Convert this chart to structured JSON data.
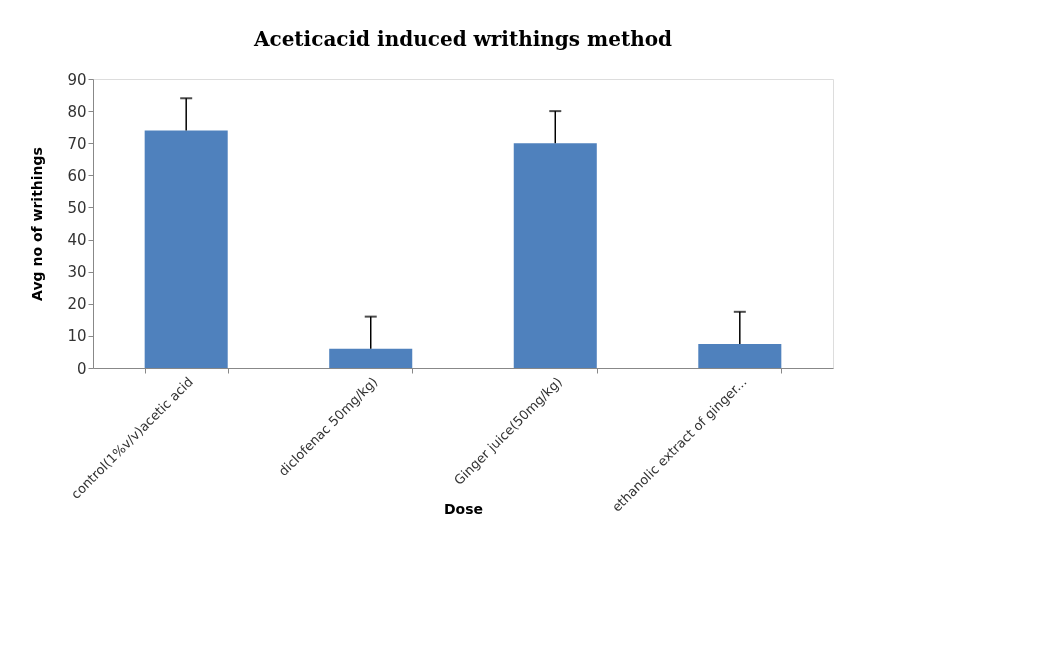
{
  "chart_data": {
    "type": "bar",
    "title": "Aceticacid induced writhings method",
    "xlabel": "Dose",
    "ylabel": "Avg no of writhings",
    "categories": [
      "control(1%v/v)acetic acid",
      "diclofenac 50mg/kg)",
      "Ginger juice(50mg/kg)",
      "ethanolic extract of ginger..."
    ],
    "values": [
      74,
      6,
      70,
      7.5
    ],
    "errors": [
      [
        74,
        84
      ],
      [
        6,
        16
      ],
      [
        70,
        80
      ],
      [
        7.5,
        17.5
      ]
    ],
    "color": "#4f81bd",
    "ylim": [
      0,
      90
    ],
    "yticks": [
      0,
      10,
      20,
      30,
      40,
      50,
      60,
      70,
      80,
      90
    ],
    "grid": false
  }
}
